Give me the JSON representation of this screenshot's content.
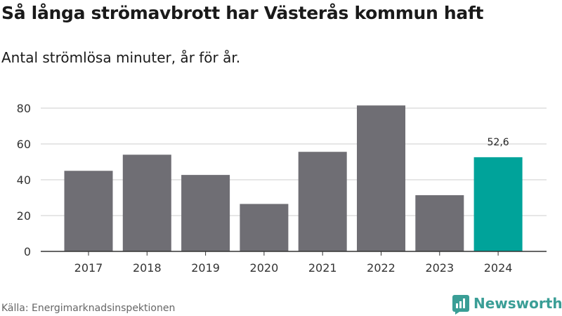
{
  "title": "Så långa strömavbrott har Västerås kommun haft",
  "subtitle": "Antal strömlösa minuter, år för år.",
  "source": "Källa: Energimarknadsinspektionen",
  "brand": "Newsworthy",
  "colors": {
    "bar": "#6f6e74",
    "highlight": "#00a39a",
    "grid": "#dddddd",
    "brand": "#3a9e96"
  },
  "chart_data": {
    "type": "bar",
    "categories": [
      "2017",
      "2018",
      "2019",
      "2020",
      "2021",
      "2022",
      "2023",
      "2024"
    ],
    "values": [
      45.0,
      54.0,
      42.7,
      26.5,
      55.6,
      81.5,
      31.4,
      52.6
    ],
    "highlight_index": 7,
    "data_labels": [
      {
        "index": 7,
        "text": "52,6"
      }
    ],
    "yticks": [
      0,
      20,
      40,
      60,
      80
    ],
    "ylim": [
      0,
      80
    ],
    "grid": true,
    "xlabel": "",
    "ylabel": ""
  }
}
